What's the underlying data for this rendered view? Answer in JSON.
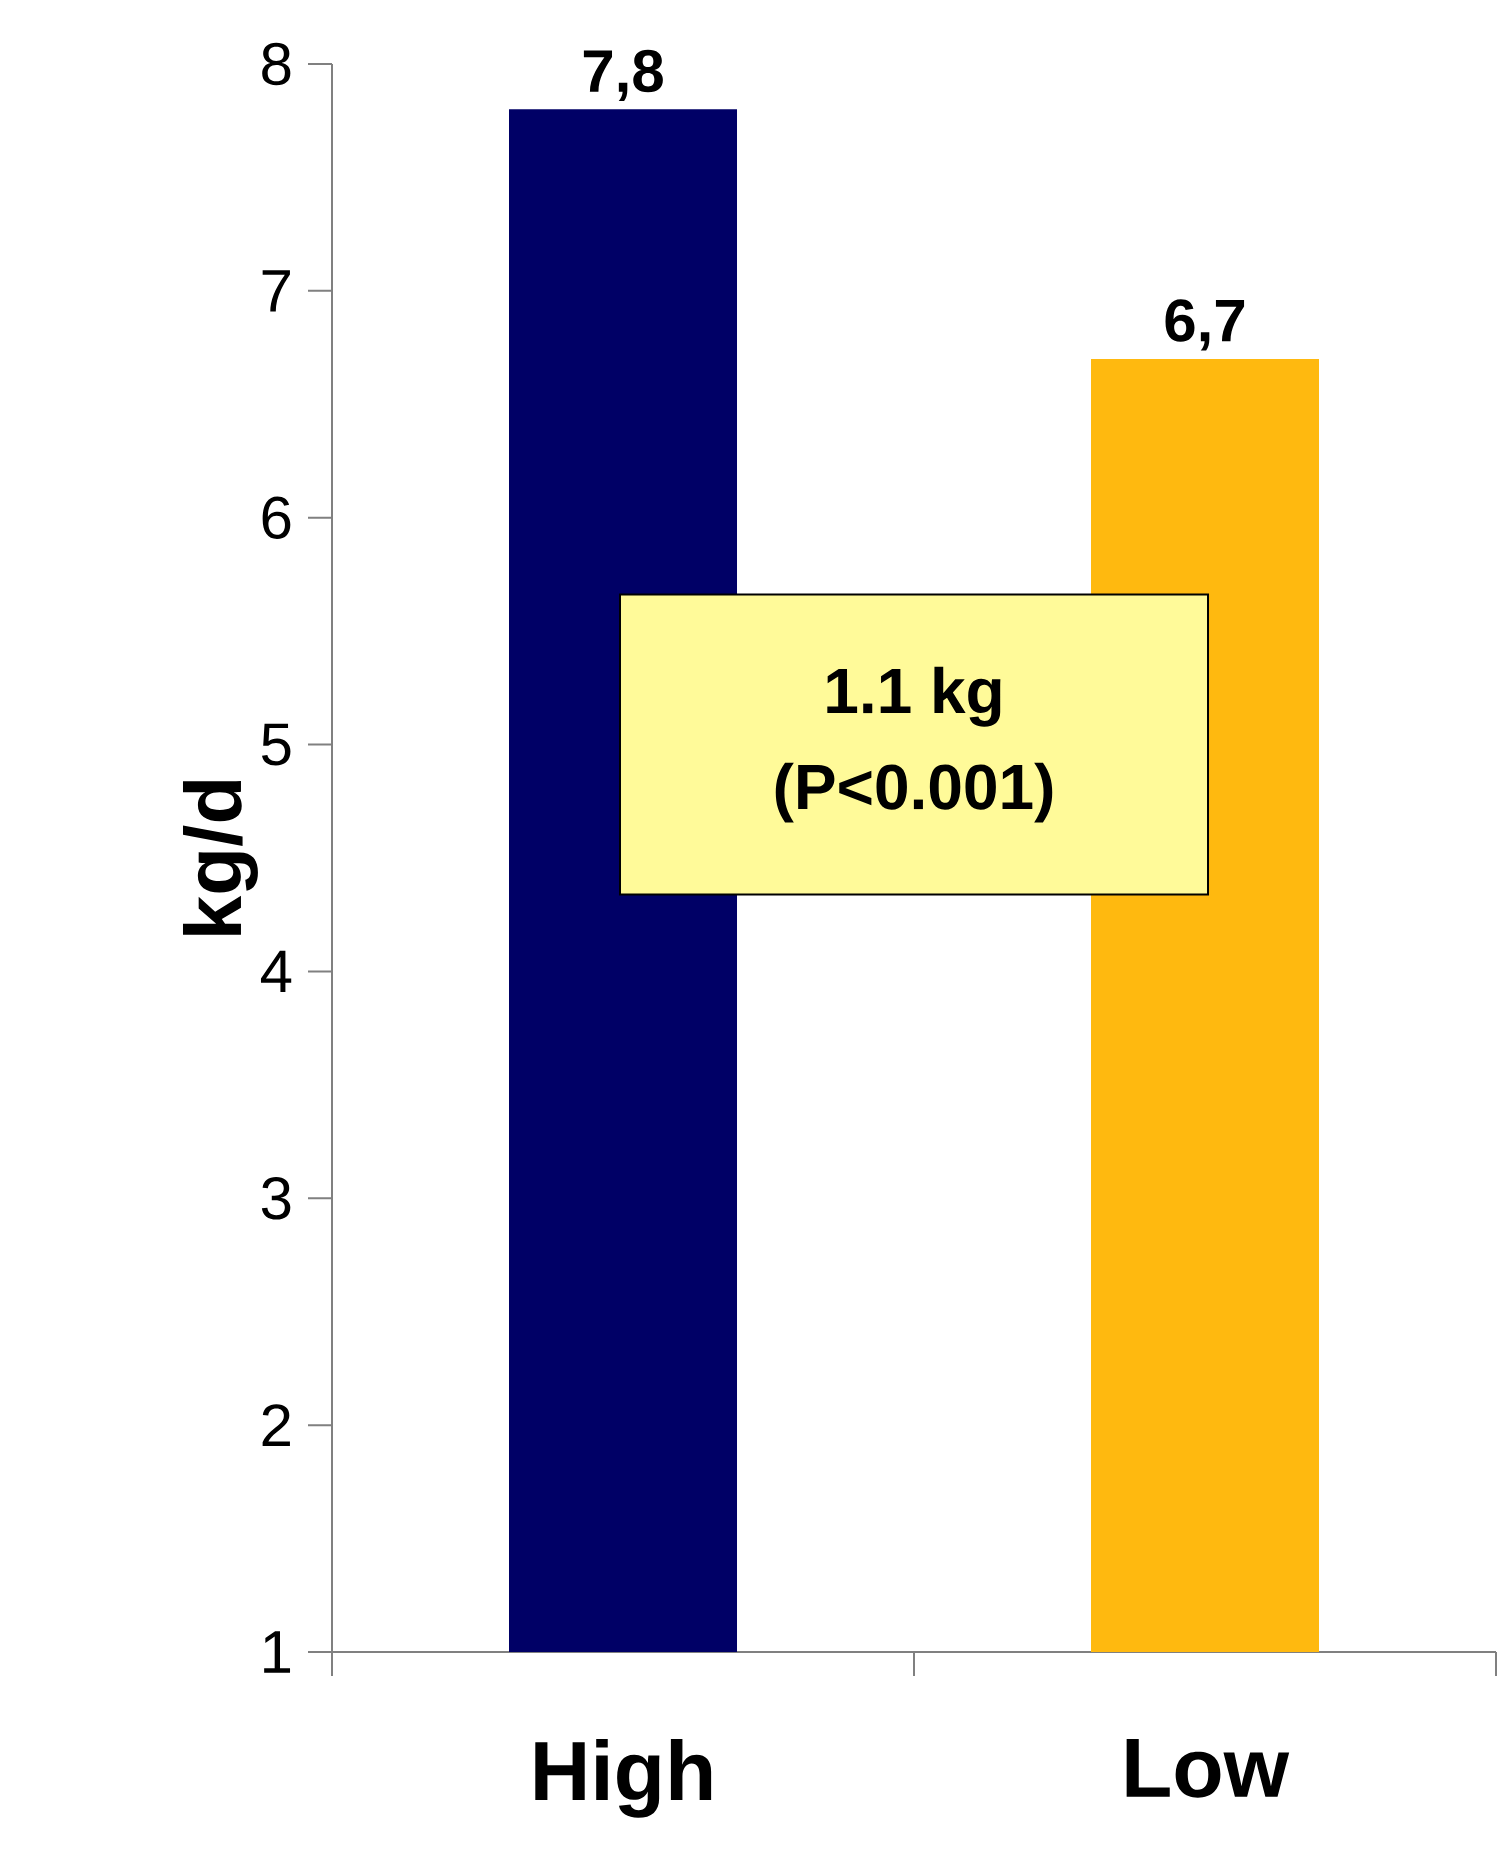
{
  "chart_data": {
    "type": "bar",
    "ylabel": "kg/d",
    "categories": [
      "High",
      "Low"
    ],
    "values": [
      7.8,
      6.7
    ],
    "colors": [
      "#000066",
      "#ffb90f"
    ],
    "value_labels": [
      "7,8",
      "6,7"
    ],
    "ylim": [
      1,
      8
    ],
    "yticks": [
      1,
      2,
      3,
      4,
      5,
      6,
      7,
      8
    ],
    "annotations": [
      "1.1 kg",
      "(P<0.001)"
    ]
  }
}
